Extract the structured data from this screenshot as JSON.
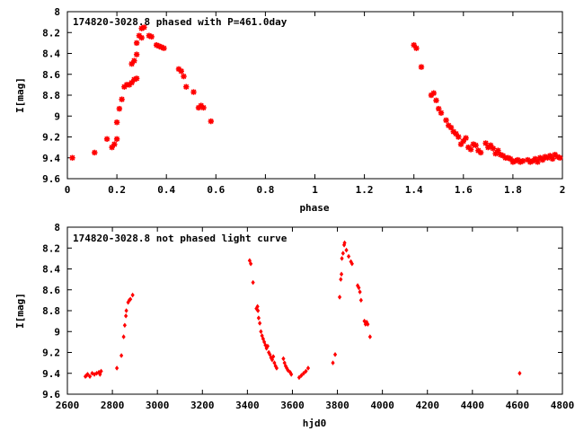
{
  "chart_data": [
    {
      "type": "scatter",
      "title": "174820-3028.8 phased with P=461.0day",
      "xlabel": "phase",
      "ylabel": "I[mag]",
      "xlim": [
        0,
        2
      ],
      "ylim": [
        9.6,
        8
      ],
      "y_inverted": true,
      "xticks": [
        "0",
        "0.2",
        "0.4",
        "0.6",
        "0.8",
        "1",
        "1.2",
        "1.4",
        "1.6",
        "1.8",
        "2"
      ],
      "yticks": [
        "8",
        "8.2",
        "8.4",
        "8.6",
        "8.8",
        "9",
        "9.2",
        "9.4",
        "9.6"
      ],
      "xtick_values": [
        0,
        0.2,
        0.4,
        0.6,
        0.8,
        1.0,
        1.2,
        1.4,
        1.6,
        1.8,
        2.0
      ],
      "ytick_values": [
        8,
        8.2,
        8.4,
        8.6,
        8.8,
        9.0,
        9.2,
        9.4,
        9.6
      ],
      "marker": "star",
      "color": "#ff0000",
      "points": [
        [
          0.02,
          9.4
        ],
        [
          0.11,
          9.35
        ],
        [
          0.16,
          9.22
        ],
        [
          0.18,
          9.3
        ],
        [
          0.19,
          9.27
        ],
        [
          0.2,
          9.22
        ],
        [
          0.2,
          9.06
        ],
        [
          0.21,
          8.93
        ],
        [
          0.22,
          8.84
        ],
        [
          0.23,
          8.72
        ],
        [
          0.24,
          8.7
        ],
        [
          0.25,
          8.7
        ],
        [
          0.26,
          8.68
        ],
        [
          0.26,
          8.5
        ],
        [
          0.27,
          8.65
        ],
        [
          0.27,
          8.47
        ],
        [
          0.28,
          8.41
        ],
        [
          0.28,
          8.64
        ],
        [
          0.28,
          8.3
        ],
        [
          0.29,
          8.23
        ],
        [
          0.3,
          8.25
        ],
        [
          0.3,
          8.16
        ],
        [
          0.31,
          8.15
        ],
        [
          0.33,
          8.23
        ],
        [
          0.34,
          8.24
        ],
        [
          0.36,
          8.32
        ],
        [
          0.37,
          8.33
        ],
        [
          0.38,
          8.34
        ],
        [
          0.39,
          8.35
        ],
        [
          0.45,
          8.55
        ],
        [
          0.46,
          8.57
        ],
        [
          0.47,
          8.62
        ],
        [
          0.48,
          8.72
        ],
        [
          0.51,
          8.77
        ],
        [
          0.53,
          8.92
        ],
        [
          0.54,
          8.9
        ],
        [
          0.55,
          8.92
        ],
        [
          0.58,
          9.05
        ],
        [
          1.4,
          8.32
        ],
        [
          1.41,
          8.35
        ],
        [
          1.43,
          8.53
        ],
        [
          1.47,
          8.8
        ],
        [
          1.48,
          8.78
        ],
        [
          1.49,
          8.85
        ],
        [
          1.5,
          8.93
        ],
        [
          1.51,
          8.97
        ],
        [
          1.53,
          9.04
        ],
        [
          1.54,
          9.09
        ],
        [
          1.55,
          9.11
        ],
        [
          1.56,
          9.15
        ],
        [
          1.57,
          9.17
        ],
        [
          1.58,
          9.2
        ],
        [
          1.59,
          9.27
        ],
        [
          1.6,
          9.24
        ],
        [
          1.61,
          9.21
        ],
        [
          1.62,
          9.3
        ],
        [
          1.63,
          9.32
        ],
        [
          1.64,
          9.27
        ],
        [
          1.65,
          9.28
        ],
        [
          1.66,
          9.33
        ],
        [
          1.67,
          9.35
        ],
        [
          1.69,
          9.26
        ],
        [
          1.7,
          9.3
        ],
        [
          1.71,
          9.28
        ],
        [
          1.72,
          9.31
        ],
        [
          1.73,
          9.36
        ],
        [
          1.74,
          9.33
        ],
        [
          1.75,
          9.37
        ],
        [
          1.76,
          9.38
        ],
        [
          1.77,
          9.4
        ],
        [
          1.78,
          9.4
        ],
        [
          1.79,
          9.41
        ],
        [
          1.8,
          9.44
        ],
        [
          1.81,
          9.43
        ],
        [
          1.82,
          9.42
        ],
        [
          1.83,
          9.44
        ],
        [
          1.84,
          9.43
        ],
        [
          1.86,
          9.42
        ],
        [
          1.87,
          9.44
        ],
        [
          1.88,
          9.43
        ],
        [
          1.89,
          9.41
        ],
        [
          1.9,
          9.44
        ],
        [
          1.91,
          9.4
        ],
        [
          1.92,
          9.42
        ],
        [
          1.93,
          9.39
        ],
        [
          1.94,
          9.4
        ],
        [
          1.95,
          9.38
        ],
        [
          1.96,
          9.41
        ],
        [
          1.97,
          9.37
        ],
        [
          1.98,
          9.39
        ],
        [
          1.99,
          9.4
        ]
      ]
    },
    {
      "type": "scatter",
      "title": "174820-3028.8 not phased light curve",
      "xlabel": "hjd0",
      "ylabel": "I[mag]",
      "xlim": [
        2600,
        4800
      ],
      "ylim": [
        9.6,
        8
      ],
      "y_inverted": true,
      "xticks": [
        "2600",
        "2800",
        "3000",
        "3200",
        "3400",
        "3600",
        "3800",
        "4000",
        "4200",
        "4400",
        "4600",
        "4800"
      ],
      "yticks": [
        "8",
        "8.2",
        "8.4",
        "8.6",
        "8.8",
        "9",
        "9.2",
        "9.4",
        "9.6"
      ],
      "xtick_values": [
        2600,
        2800,
        3000,
        3200,
        3400,
        3600,
        3800,
        4000,
        4200,
        4400,
        4600,
        4800
      ],
      "ytick_values": [
        8,
        8.2,
        8.4,
        8.6,
        8.8,
        9.0,
        9.2,
        9.4,
        9.6
      ],
      "marker": "diamond",
      "color": "#ff0000",
      "points": [
        [
          2680,
          9.43
        ],
        [
          2685,
          9.42
        ],
        [
          2690,
          9.41
        ],
        [
          2700,
          9.43
        ],
        [
          2710,
          9.4
        ],
        [
          2720,
          9.41
        ],
        [
          2730,
          9.4
        ],
        [
          2740,
          9.39
        ],
        [
          2745,
          9.41
        ],
        [
          2750,
          9.38
        ],
        [
          2820,
          9.35
        ],
        [
          2840,
          9.23
        ],
        [
          2850,
          9.05
        ],
        [
          2855,
          8.94
        ],
        [
          2860,
          8.85
        ],
        [
          2862,
          8.8
        ],
        [
          2870,
          8.72
        ],
        [
          2875,
          8.7
        ],
        [
          2880,
          8.69
        ],
        [
          2890,
          8.65
        ],
        [
          3410,
          8.32
        ],
        [
          3415,
          8.35
        ],
        [
          3425,
          8.53
        ],
        [
          3440,
          8.78
        ],
        [
          3445,
          8.76
        ],
        [
          3447,
          8.8
        ],
        [
          3450,
          8.87
        ],
        [
          3455,
          8.92
        ],
        [
          3460,
          9.0
        ],
        [
          3465,
          9.04
        ],
        [
          3470,
          9.07
        ],
        [
          3475,
          9.1
        ],
        [
          3480,
          9.13
        ],
        [
          3485,
          9.16
        ],
        [
          3490,
          9.14
        ],
        [
          3495,
          9.2
        ],
        [
          3500,
          9.22
        ],
        [
          3505,
          9.25
        ],
        [
          3510,
          9.27
        ],
        [
          3515,
          9.24
        ],
        [
          3520,
          9.3
        ],
        [
          3525,
          9.33
        ],
        [
          3530,
          9.35
        ],
        [
          3560,
          9.26
        ],
        [
          3565,
          9.3
        ],
        [
          3570,
          9.33
        ],
        [
          3575,
          9.35
        ],
        [
          3580,
          9.37
        ],
        [
          3590,
          9.39
        ],
        [
          3595,
          9.41
        ],
        [
          3630,
          9.44
        ],
        [
          3640,
          9.42
        ],
        [
          3650,
          9.4
        ],
        [
          3660,
          9.38
        ],
        [
          3670,
          9.35
        ],
        [
          3780,
          9.3
        ],
        [
          3790,
          9.22
        ],
        [
          3810,
          8.67
        ],
        [
          3815,
          8.5
        ],
        [
          3818,
          8.45
        ],
        [
          3820,
          8.3
        ],
        [
          3825,
          8.25
        ],
        [
          3830,
          8.17
        ],
        [
          3832,
          8.15
        ],
        [
          3840,
          8.22
        ],
        [
          3850,
          8.28
        ],
        [
          3860,
          8.33
        ],
        [
          3865,
          8.35
        ],
        [
          3890,
          8.56
        ],
        [
          3895,
          8.58
        ],
        [
          3900,
          8.62
        ],
        [
          3905,
          8.7
        ],
        [
          3920,
          8.9
        ],
        [
          3925,
          8.93
        ],
        [
          3930,
          8.91
        ],
        [
          3935,
          8.93
        ],
        [
          3945,
          9.05
        ],
        [
          4610,
          9.4
        ]
      ]
    }
  ]
}
